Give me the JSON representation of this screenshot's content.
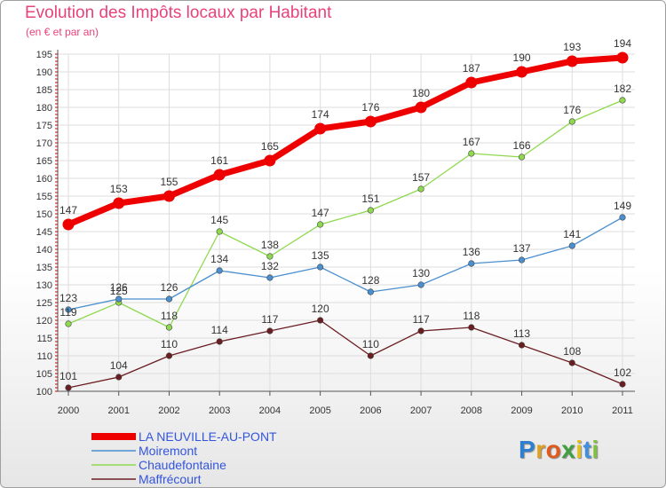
{
  "chart_data": {
    "type": "line",
    "title": "Evolution des Impôts locaux par Habitant",
    "subtitle": "(en € et par an)",
    "x": [
      "2000",
      "2001",
      "2002",
      "2003",
      "2004",
      "2005",
      "2006",
      "2007",
      "2008",
      "2009",
      "2010",
      "2011"
    ],
    "ylim": [
      100,
      195
    ],
    "yticks": [
      100,
      105,
      110,
      115,
      120,
      125,
      130,
      135,
      140,
      145,
      150,
      155,
      160,
      165,
      170,
      175,
      180,
      185,
      190,
      195
    ],
    "grid": true,
    "legend_position": "bottom-left",
    "series": [
      {
        "name": "LA NEUVILLE-AU-PONT",
        "color": "#ee0000",
        "values": [
          147,
          153,
          155,
          161,
          165,
          174,
          176,
          180,
          187,
          190,
          193,
          194
        ]
      },
      {
        "name": "Moiremont",
        "color": "#4a8fcf",
        "values": [
          123,
          126,
          126,
          134,
          132,
          135,
          128,
          130,
          136,
          137,
          141,
          149
        ]
      },
      {
        "name": "Chaudefontaine",
        "color": "#8fd94e",
        "values": [
          119,
          125,
          118,
          145,
          138,
          147,
          151,
          157,
          167,
          166,
          176,
          182
        ]
      },
      {
        "name": "Maffrécourt",
        "color": "#6b1e22",
        "values": [
          101,
          104,
          110,
          114,
          117,
          120,
          110,
          117,
          118,
          113,
          108,
          102
        ]
      }
    ]
  },
  "logo": {
    "letters": [
      "P",
      "r",
      "o",
      "x",
      "i",
      "t",
      "i"
    ],
    "colors": [
      "#2f7fd0",
      "#e0a020",
      "#e05a20",
      "#40a040",
      "#e0c020",
      "#4090e0",
      "#80c040"
    ]
  }
}
